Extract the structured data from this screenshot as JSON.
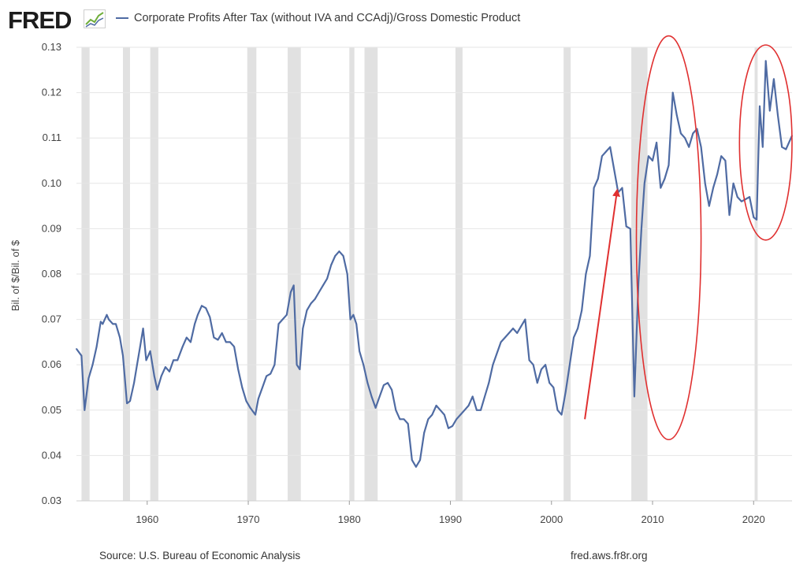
{
  "header": {
    "logo_text": "FRED",
    "logo_icon": "fred-chart-icon",
    "series_legend": "Corporate Profits After Tax (without IVA and CCAdj)/Gross Domestic Product"
  },
  "footer": {
    "source": "Source: U.S. Bureau of Economic Analysis",
    "credit": "fred.aws.fr8r.org"
  },
  "colors": {
    "series": "#4f6ba3",
    "recession": "#e1e1e1",
    "grid": "#e6e6e6",
    "annotation": "#e03030"
  },
  "chart_data": {
    "type": "line",
    "ylabel": "Bil. of $/Bil. of $",
    "xlabel": "",
    "ylim": [
      0.03,
      0.13
    ],
    "xlim": [
      1953.0,
      2023.8
    ],
    "yticks": [
      "0.03",
      "0.04",
      "0.05",
      "0.06",
      "0.07",
      "0.08",
      "0.09",
      "0.10",
      "0.11",
      "0.12",
      "0.13"
    ],
    "xticks": [
      "1960",
      "1970",
      "1980",
      "1990",
      "2000",
      "2010",
      "2020"
    ],
    "grid": true,
    "recessions": [
      [
        1953.5,
        1954.3
      ],
      [
        1957.6,
        1958.3
      ],
      [
        1960.3,
        1961.1
      ],
      [
        1969.9,
        1970.8
      ],
      [
        1973.9,
        1975.2
      ],
      [
        1980.0,
        1980.5
      ],
      [
        1981.5,
        1982.8
      ],
      [
        1990.5,
        1991.2
      ],
      [
        2001.2,
        2001.9
      ],
      [
        2007.9,
        2009.5
      ],
      [
        2020.1,
        2020.4
      ]
    ],
    "series": [
      {
        "name": "Corporate Profits After Tax (without IVA and CCAdj)/Gross Domestic Product",
        "x": [
          1953.0,
          1953.5,
          1953.8,
          1954.2,
          1954.6,
          1955.0,
          1955.4,
          1955.6,
          1956.0,
          1956.2,
          1956.6,
          1956.9,
          1957.3,
          1957.6,
          1958.0,
          1958.3,
          1958.7,
          1959.0,
          1959.3,
          1959.6,
          1959.9,
          1960.3,
          1960.7,
          1961.0,
          1961.4,
          1961.8,
          1962.2,
          1962.6,
          1963.0,
          1963.5,
          1963.9,
          1964.3,
          1964.7,
          1965.0,
          1965.4,
          1965.8,
          1966.2,
          1966.6,
          1967.0,
          1967.4,
          1967.8,
          1968.2,
          1968.6,
          1969.0,
          1969.4,
          1969.8,
          1970.2,
          1970.7,
          1971.0,
          1971.4,
          1971.8,
          1972.2,
          1972.6,
          1973.0,
          1973.4,
          1973.8,
          1974.2,
          1974.5,
          1974.8,
          1975.1,
          1975.4,
          1975.8,
          1976.2,
          1976.6,
          1977.0,
          1977.4,
          1977.8,
          1978.2,
          1978.6,
          1979.0,
          1979.4,
          1979.8,
          1980.1,
          1980.4,
          1980.7,
          1981.0,
          1981.4,
          1981.8,
          1982.2,
          1982.6,
          1983.0,
          1983.4,
          1983.8,
          1984.2,
          1984.6,
          1985.0,
          1985.4,
          1985.8,
          1986.2,
          1986.6,
          1987.0,
          1987.4,
          1987.8,
          1988.2,
          1988.6,
          1989.0,
          1989.4,
          1989.8,
          1990.2,
          1990.6,
          1991.0,
          1991.4,
          1991.8,
          1992.2,
          1992.6,
          1993.0,
          1993.4,
          1993.8,
          1994.2,
          1994.6,
          1995.0,
          1995.4,
          1995.8,
          1996.2,
          1996.6,
          1997.0,
          1997.4,
          1997.8,
          1998.2,
          1998.6,
          1999.0,
          1999.4,
          1999.8,
          2000.2,
          2000.6,
          2001.0,
          2001.4,
          2001.8,
          2002.2,
          2002.6,
          2003.0,
          2003.4,
          2003.8,
          2004.2,
          2004.6,
          2005.0,
          2005.4,
          2005.8,
          2006.2,
          2006.6,
          2007.0,
          2007.4,
          2007.8,
          2008.2,
          2008.6,
          2008.9,
          2009.2,
          2009.6,
          2010.0,
          2010.4,
          2010.8,
          2011.2,
          2011.6,
          2012.0,
          2012.4,
          2012.8,
          2013.2,
          2013.6,
          2014.0,
          2014.4,
          2014.8,
          2015.2,
          2015.6,
          2016.0,
          2016.4,
          2016.8,
          2017.2,
          2017.6,
          2018.0,
          2018.4,
          2018.8,
          2019.2,
          2019.6,
          2020.0,
          2020.3,
          2020.6,
          2020.9,
          2021.2,
          2021.6,
          2022.0,
          2022.4,
          2022.8,
          2023.2,
          2023.8
        ],
        "y": [
          0.0635,
          0.062,
          0.05,
          0.057,
          0.06,
          0.064,
          0.0695,
          0.069,
          0.071,
          0.07,
          0.069,
          0.069,
          0.066,
          0.062,
          0.0515,
          0.052,
          0.056,
          0.06,
          0.064,
          0.068,
          0.061,
          0.063,
          0.0575,
          0.0545,
          0.0575,
          0.0595,
          0.0585,
          0.061,
          0.061,
          0.064,
          0.066,
          0.065,
          0.069,
          0.071,
          0.073,
          0.0725,
          0.0705,
          0.066,
          0.0655,
          0.067,
          0.065,
          0.065,
          0.064,
          0.059,
          0.055,
          0.052,
          0.0505,
          0.049,
          0.0525,
          0.055,
          0.0575,
          0.058,
          0.06,
          0.069,
          0.07,
          0.071,
          0.076,
          0.0775,
          0.06,
          0.059,
          0.068,
          0.072,
          0.0735,
          0.0745,
          0.076,
          0.0775,
          0.079,
          0.082,
          0.084,
          0.085,
          0.084,
          0.08,
          0.07,
          0.071,
          0.069,
          0.063,
          0.06,
          0.056,
          0.053,
          0.0505,
          0.053,
          0.0555,
          0.056,
          0.0545,
          0.05,
          0.048,
          0.048,
          0.047,
          0.039,
          0.0375,
          0.039,
          0.045,
          0.048,
          0.049,
          0.051,
          0.05,
          0.049,
          0.046,
          0.0465,
          0.048,
          0.049,
          0.05,
          0.051,
          0.053,
          0.05,
          0.05,
          0.053,
          0.056,
          0.06,
          0.0625,
          0.065,
          0.066,
          0.067,
          0.068,
          0.067,
          0.0685,
          0.07,
          0.061,
          0.06,
          0.056,
          0.059,
          0.06,
          0.056,
          0.055,
          0.05,
          0.049,
          0.054,
          0.06,
          0.066,
          0.068,
          0.072,
          0.08,
          0.084,
          0.099,
          0.101,
          0.106,
          0.107,
          0.108,
          0.103,
          0.098,
          0.099,
          0.0905,
          0.09,
          0.053,
          0.078,
          0.09,
          0.1,
          0.106,
          0.105,
          0.109,
          0.099,
          0.101,
          0.104,
          0.12,
          0.115,
          0.111,
          0.11,
          0.108,
          0.111,
          0.112,
          0.108,
          0.1,
          0.095,
          0.099,
          0.102,
          0.106,
          0.105,
          0.093,
          0.1,
          0.097,
          0.096,
          0.0965,
          0.097,
          0.0925,
          0.092,
          0.117,
          0.108,
          0.127,
          0.116,
          0.123,
          0.115,
          0.108,
          0.1075,
          0.1105
        ]
      }
    ],
    "annotations": [
      {
        "type": "arrow",
        "from": [
          2003.3,
          0.048
        ],
        "to": [
          2006.5,
          0.0985
        ]
      },
      {
        "type": "ellipse",
        "cx": 2011.6,
        "cy": 0.088,
        "rx": 3.2,
        "ry": 0.0445
      },
      {
        "type": "ellipse",
        "cx": 2021.2,
        "cy": 0.109,
        "rx": 2.6,
        "ry": 0.0215
      }
    ]
  }
}
